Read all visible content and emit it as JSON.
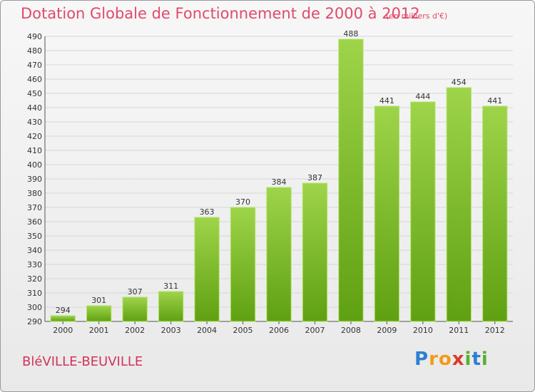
{
  "chart_data": {
    "type": "bar",
    "title": "Dotation Globale de Fonctionnement de 2000 à 2012",
    "unit": "(en milliers d'€)",
    "categories": [
      "2000",
      "2001",
      "2002",
      "2003",
      "2004",
      "2005",
      "2006",
      "2007",
      "2008",
      "2009",
      "2010",
      "2011",
      "2012"
    ],
    "values": [
      294,
      301,
      307,
      311,
      363,
      370,
      384,
      387,
      488,
      441,
      444,
      454,
      441
    ],
    "ylim": [
      290,
      490
    ],
    "yticks": [
      290,
      300,
      310,
      320,
      330,
      340,
      350,
      360,
      370,
      380,
      390,
      400,
      410,
      420,
      430,
      440,
      450,
      460,
      470,
      480,
      490
    ],
    "grid": true,
    "colors": {
      "bar_top": "#9ed44a",
      "bar_bottom": "#5fa012",
      "bar_edge": "#b4e36a",
      "title": "#e04a6a"
    }
  },
  "place": "BléVILLE-BEUVILLE",
  "logo": {
    "text": "Proxiti",
    "letters": [
      "P",
      "r",
      "o",
      "x",
      "i",
      "t",
      "i"
    ],
    "colors": [
      "#2f7fd0",
      "#f39a1a",
      "#f39a1a",
      "#d93a2a",
      "#5ab030",
      "#2f7fd0",
      "#5ab030"
    ]
  }
}
